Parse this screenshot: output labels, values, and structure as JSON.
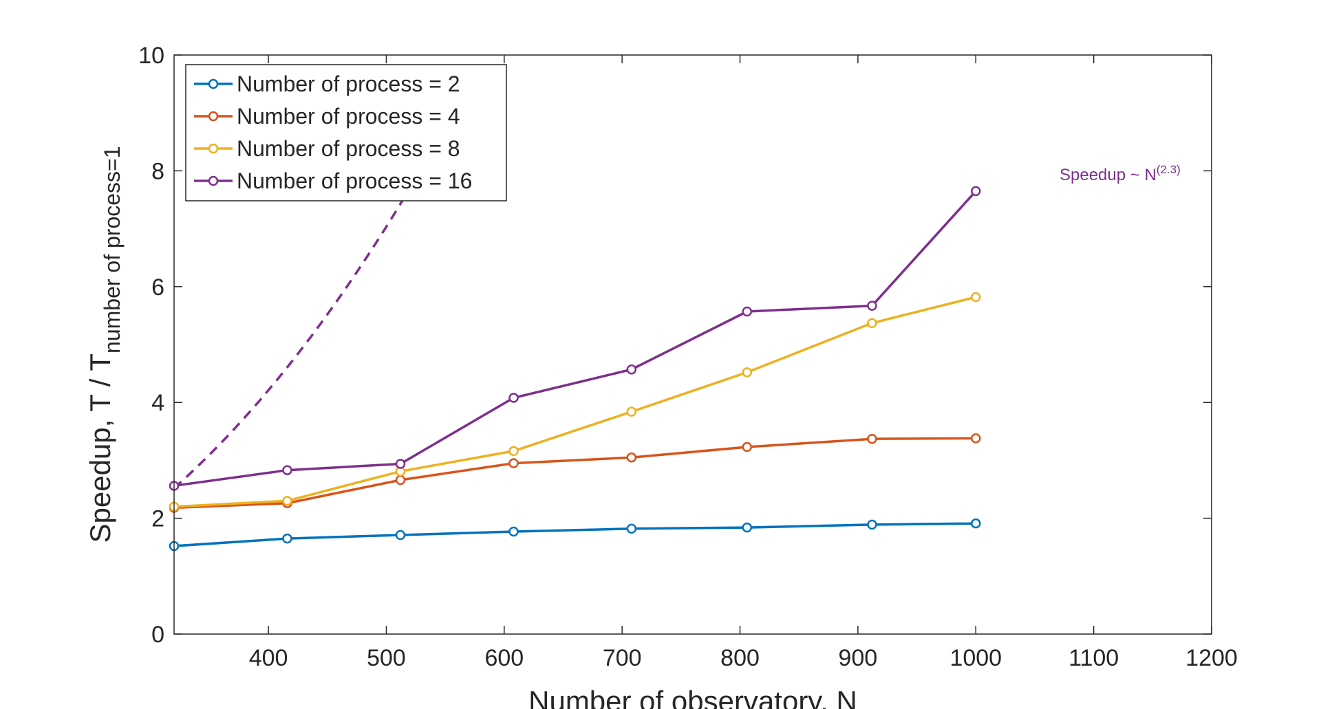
{
  "chart_data": {
    "type": "line",
    "xlabel": "Number of observatory, N",
    "ylabel_main": "Speedup, T / T",
    "ylabel_sub": "number of process=1",
    "xlim": [
      320,
      1200
    ],
    "ylim": [
      0,
      10
    ],
    "x_ticks": [
      400,
      500,
      600,
      700,
      800,
      900,
      1000,
      1100,
      1200
    ],
    "y_ticks": [
      0,
      2,
      4,
      6,
      8,
      10
    ],
    "grid": false,
    "legend_position": "top-left",
    "x": [
      320,
      416,
      512,
      608,
      708,
      806,
      912,
      1000
    ],
    "series": [
      {
        "name": "Number of process = 2",
        "color": "#0072bd",
        "values": [
          1.52,
          1.65,
          1.71,
          1.77,
          1.82,
          1.84,
          1.89,
          1.91
        ]
      },
      {
        "name": "Number of process = 4",
        "color": "#d95319",
        "values": [
          2.18,
          2.26,
          2.66,
          2.95,
          3.05,
          3.23,
          3.37,
          3.38
        ]
      },
      {
        "name": "Number of process = 8",
        "color": "#edb120",
        "values": [
          2.2,
          2.3,
          2.81,
          3.16,
          3.84,
          4.52,
          5.37,
          5.82
        ]
      },
      {
        "name": "Number of process = 16",
        "color": "#7e2f8e",
        "values": [
          2.56,
          2.83,
          2.94,
          4.08,
          4.57,
          5.57,
          5.67,
          7.65
        ]
      }
    ],
    "fit": {
      "color": "#7e2f8e",
      "exponent": 2.3,
      "x_start": 320,
      "y_start": 2.52,
      "x_end": 1200,
      "label_main": "Speedup ~ N",
      "label_sup": "(2.3)"
    }
  }
}
